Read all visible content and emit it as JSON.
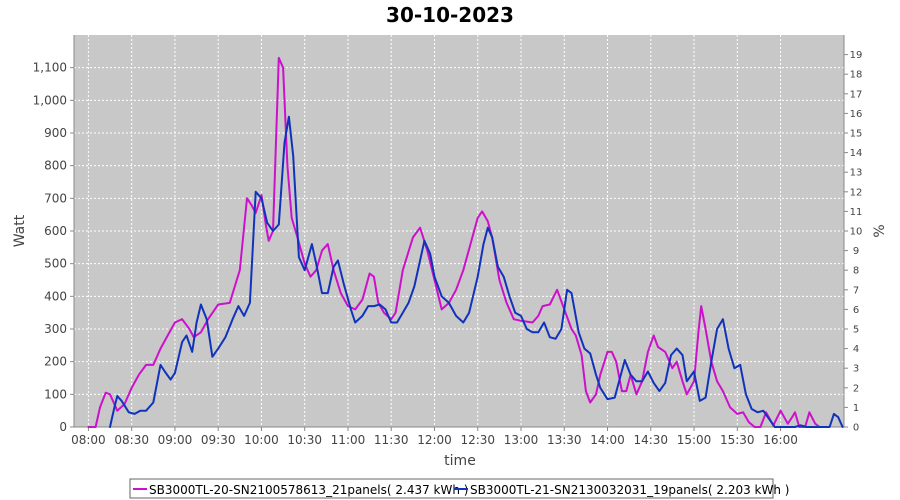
{
  "chart_data": {
    "type": "line",
    "title": "30-10-2023",
    "xlabel": "time",
    "ylabel": "Watt",
    "y2label": "%",
    "ylim": [
      0,
      1200
    ],
    "y2lim": [
      0,
      20
    ],
    "xlim": [
      "07:50",
      "16:44"
    ],
    "x_ticks": [
      "08:00",
      "08:30",
      "09:00",
      "09:30",
      "10:00",
      "10:30",
      "11:00",
      "11:30",
      "12:00",
      "12:30",
      "13:00",
      "13:30",
      "14:00",
      "14:30",
      "15:00",
      "15:30",
      "16:00"
    ],
    "y_ticks": [
      0,
      100,
      200,
      300,
      400,
      500,
      600,
      700,
      800,
      900,
      1000,
      1100
    ],
    "y_tick_labels": [
      "0",
      "100",
      "200",
      "300",
      "400",
      "500",
      "600",
      "700",
      "800",
      "900",
      "1,000",
      "1,100"
    ],
    "y2_ticks": [
      0,
      1,
      2,
      3,
      4,
      5,
      6,
      7,
      8,
      9,
      10,
      11,
      12,
      13,
      14,
      15,
      16,
      17,
      18,
      19
    ],
    "grid": true,
    "legend_position": "bottom",
    "series": [
      {
        "name": "SB3000TL-20-SN2100578613_21panels( 2.437 kWh )",
        "color": "#cc11cc",
        "points": [
          [
            "08:00",
            0
          ],
          [
            "08:05",
            0
          ],
          [
            "08:08",
            60
          ],
          [
            "08:12",
            105
          ],
          [
            "08:15",
            100
          ],
          [
            "08:20",
            50
          ],
          [
            "08:25",
            70
          ],
          [
            "08:30",
            120
          ],
          [
            "08:35",
            160
          ],
          [
            "08:40",
            190
          ],
          [
            "08:45",
            190
          ],
          [
            "08:50",
            240
          ],
          [
            "08:55",
            280
          ],
          [
            "09:00",
            320
          ],
          [
            "09:05",
            330
          ],
          [
            "09:10",
            300
          ],
          [
            "09:13",
            275
          ],
          [
            "09:18",
            290
          ],
          [
            "09:23",
            330
          ],
          [
            "09:30",
            375
          ],
          [
            "09:38",
            380
          ],
          [
            "09:45",
            480
          ],
          [
            "09:50",
            700
          ],
          [
            "09:53",
            680
          ],
          [
            "09:56",
            655
          ],
          [
            "10:00",
            710
          ],
          [
            "10:03",
            620
          ],
          [
            "10:05",
            570
          ],
          [
            "10:08",
            600
          ],
          [
            "10:12",
            1130
          ],
          [
            "10:15",
            1100
          ],
          [
            "10:18",
            800
          ],
          [
            "10:21",
            640
          ],
          [
            "10:25",
            580
          ],
          [
            "10:30",
            500
          ],
          [
            "10:34",
            460
          ],
          [
            "10:38",
            480
          ],
          [
            "10:42",
            540
          ],
          [
            "10:46",
            560
          ],
          [
            "10:50",
            480
          ],
          [
            "10:55",
            410
          ],
          [
            "11:00",
            370
          ],
          [
            "11:05",
            360
          ],
          [
            "11:10",
            390
          ],
          [
            "11:15",
            470
          ],
          [
            "11:18",
            460
          ],
          [
            "11:21",
            380
          ],
          [
            "11:25",
            350
          ],
          [
            "11:30",
            330
          ],
          [
            "11:33",
            350
          ],
          [
            "11:38",
            480
          ],
          [
            "11:45",
            580
          ],
          [
            "11:50",
            610
          ],
          [
            "11:55",
            540
          ],
          [
            "12:00",
            450
          ],
          [
            "12:05",
            360
          ],
          [
            "12:10",
            380
          ],
          [
            "12:15",
            420
          ],
          [
            "12:20",
            480
          ],
          [
            "12:25",
            560
          ],
          [
            "12:30",
            640
          ],
          [
            "12:33",
            660
          ],
          [
            "12:37",
            630
          ],
          [
            "12:40",
            580
          ],
          [
            "12:45",
            450
          ],
          [
            "12:50",
            380
          ],
          [
            "12:55",
            330
          ],
          [
            "13:00",
            325
          ],
          [
            "13:08",
            320
          ],
          [
            "13:12",
            340
          ],
          [
            "13:15",
            370
          ],
          [
            "13:20",
            375
          ],
          [
            "13:25",
            420
          ],
          [
            "13:30",
            360
          ],
          [
            "13:35",
            300
          ],
          [
            "13:38",
            280
          ],
          [
            "13:42",
            220
          ],
          [
            "13:45",
            110
          ],
          [
            "13:48",
            75
          ],
          [
            "13:52",
            100
          ],
          [
            "13:55",
            160
          ],
          [
            "14:00",
            230
          ],
          [
            "14:03",
            230
          ],
          [
            "14:06",
            200
          ],
          [
            "14:10",
            110
          ],
          [
            "14:13",
            110
          ],
          [
            "14:16",
            160
          ],
          [
            "14:20",
            100
          ],
          [
            "14:24",
            140
          ],
          [
            "14:28",
            230
          ],
          [
            "14:32",
            280
          ],
          [
            "14:35",
            245
          ],
          [
            "14:40",
            230
          ],
          [
            "14:45",
            180
          ],
          [
            "14:48",
            200
          ],
          [
            "14:52",
            140
          ],
          [
            "14:55",
            100
          ],
          [
            "15:00",
            140
          ],
          [
            "15:03",
            290
          ],
          [
            "15:05",
            370
          ],
          [
            "15:08",
            300
          ],
          [
            "15:12",
            200
          ],
          [
            "15:16",
            140
          ],
          [
            "15:20",
            110
          ],
          [
            "15:25",
            60
          ],
          [
            "15:30",
            40
          ],
          [
            "15:34",
            45
          ],
          [
            "15:38",
            15
          ],
          [
            "15:42",
            0
          ],
          [
            "15:46",
            0
          ],
          [
            "15:50",
            45
          ],
          [
            "15:55",
            5
          ],
          [
            "16:00",
            50
          ],
          [
            "16:05",
            10
          ],
          [
            "16:08",
            30
          ],
          [
            "16:10",
            45
          ],
          [
            "16:13",
            0
          ],
          [
            "16:17",
            0
          ],
          [
            "16:20",
            45
          ],
          [
            "16:24",
            10
          ],
          [
            "16:27",
            0
          ]
        ]
      },
      {
        "name": "SB3000TL-21-SN2130032031_19panels( 2.203 kWh )",
        "color": "#1133bb",
        "points": [
          [
            "08:15",
            0
          ],
          [
            "08:18",
            60
          ],
          [
            "08:20",
            95
          ],
          [
            "08:23",
            80
          ],
          [
            "08:28",
            45
          ],
          [
            "08:32",
            40
          ],
          [
            "08:36",
            50
          ],
          [
            "08:40",
            50
          ],
          [
            "08:45",
            75
          ],
          [
            "08:50",
            190
          ],
          [
            "08:53",
            170
          ],
          [
            "08:57",
            145
          ],
          [
            "09:00",
            165
          ],
          [
            "09:05",
            260
          ],
          [
            "09:08",
            280
          ],
          [
            "09:12",
            230
          ],
          [
            "09:15",
            320
          ],
          [
            "09:18",
            375
          ],
          [
            "09:22",
            330
          ],
          [
            "09:26",
            215
          ],
          [
            "09:30",
            240
          ],
          [
            "09:35",
            275
          ],
          [
            "09:40",
            330
          ],
          [
            "09:44",
            370
          ],
          [
            "09:48",
            340
          ],
          [
            "09:52",
            380
          ],
          [
            "09:56",
            720
          ],
          [
            "10:00",
            700
          ],
          [
            "10:04",
            625
          ],
          [
            "10:08",
            600
          ],
          [
            "10:12",
            620
          ],
          [
            "10:16",
            870
          ],
          [
            "10:19",
            950
          ],
          [
            "10:22",
            830
          ],
          [
            "10:26",
            520
          ],
          [
            "10:30",
            480
          ],
          [
            "10:35",
            560
          ],
          [
            "10:38",
            500
          ],
          [
            "10:42",
            410
          ],
          [
            "10:46",
            410
          ],
          [
            "10:50",
            490
          ],
          [
            "10:53",
            510
          ],
          [
            "10:57",
            440
          ],
          [
            "11:02",
            360
          ],
          [
            "11:05",
            320
          ],
          [
            "11:10",
            340
          ],
          [
            "11:14",
            370
          ],
          [
            "11:18",
            370
          ],
          [
            "11:22",
            375
          ],
          [
            "11:26",
            360
          ],
          [
            "11:30",
            320
          ],
          [
            "11:34",
            320
          ],
          [
            "11:38",
            350
          ],
          [
            "11:42",
            380
          ],
          [
            "11:46",
            430
          ],
          [
            "11:50",
            510
          ],
          [
            "11:53",
            570
          ],
          [
            "11:57",
            530
          ],
          [
            "12:00",
            460
          ],
          [
            "12:05",
            400
          ],
          [
            "12:10",
            380
          ],
          [
            "12:15",
            340
          ],
          [
            "12:20",
            320
          ],
          [
            "12:24",
            350
          ],
          [
            "12:30",
            460
          ],
          [
            "12:34",
            560
          ],
          [
            "12:37",
            610
          ],
          [
            "12:40",
            580
          ],
          [
            "12:44",
            490
          ],
          [
            "12:48",
            460
          ],
          [
            "12:52",
            400
          ],
          [
            "12:56",
            350
          ],
          [
            "13:00",
            340
          ],
          [
            "13:04",
            300
          ],
          [
            "13:08",
            290
          ],
          [
            "13:12",
            290
          ],
          [
            "13:16",
            320
          ],
          [
            "13:20",
            275
          ],
          [
            "13:24",
            270
          ],
          [
            "13:28",
            300
          ],
          [
            "13:32",
            420
          ],
          [
            "13:35",
            410
          ],
          [
            "13:40",
            290
          ],
          [
            "13:44",
            240
          ],
          [
            "13:48",
            225
          ],
          [
            "13:52",
            160
          ],
          [
            "13:55",
            120
          ],
          [
            "14:00",
            85
          ],
          [
            "14:05",
            90
          ],
          [
            "14:08",
            140
          ],
          [
            "14:12",
            205
          ],
          [
            "14:16",
            160
          ],
          [
            "14:20",
            140
          ],
          [
            "14:24",
            140
          ],
          [
            "14:28",
            170
          ],
          [
            "14:32",
            135
          ],
          [
            "14:36",
            110
          ],
          [
            "14:40",
            135
          ],
          [
            "14:44",
            220
          ],
          [
            "14:48",
            240
          ],
          [
            "14:52",
            220
          ],
          [
            "14:55",
            140
          ],
          [
            "15:00",
            170
          ],
          [
            "15:04",
            80
          ],
          [
            "15:08",
            90
          ],
          [
            "15:12",
            200
          ],
          [
            "15:16",
            300
          ],
          [
            "15:20",
            330
          ],
          [
            "15:24",
            240
          ],
          [
            "15:28",
            180
          ],
          [
            "15:32",
            190
          ],
          [
            "15:36",
            100
          ],
          [
            "15:40",
            55
          ],
          [
            "15:44",
            45
          ],
          [
            "15:48",
            50
          ],
          [
            "15:52",
            25
          ],
          [
            "15:56",
            0
          ],
          [
            "16:00",
            0
          ],
          [
            "16:06",
            0
          ],
          [
            "16:10",
            0
          ],
          [
            "16:14",
            5
          ],
          [
            "16:18",
            0
          ],
          [
            "16:22",
            0
          ],
          [
            "16:26",
            0
          ],
          [
            "16:30",
            0
          ],
          [
            "16:34",
            0
          ],
          [
            "16:37",
            40
          ],
          [
            "16:40",
            30
          ],
          [
            "16:43",
            0
          ]
        ]
      }
    ]
  }
}
